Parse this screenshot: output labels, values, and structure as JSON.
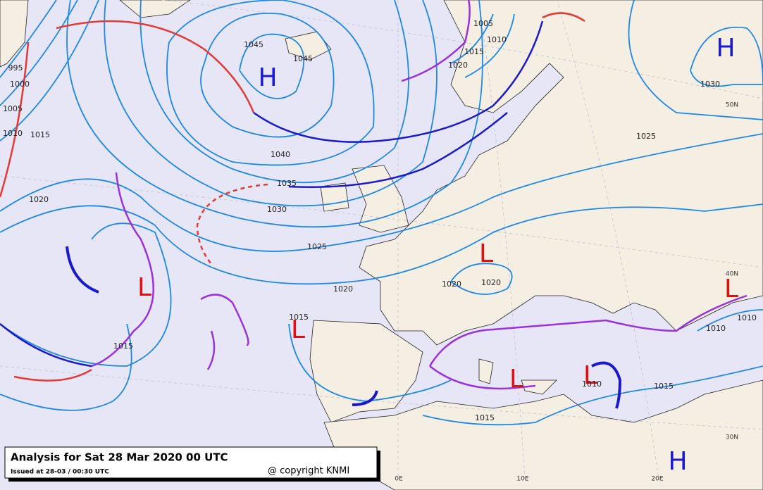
{
  "pressure_centers": [
    {
      "label": "H"
    },
    {
      "label": "H"
    },
    {
      "label": "H"
    },
    {
      "label": "L"
    },
    {
      "label": "L"
    },
    {
      "label": "L"
    },
    {
      "label": "L"
    },
    {
      "label": "L"
    },
    {
      "label": "L"
    }
  ],
  "isobar_labels": [
    "1045",
    "1045",
    "1040",
    "1035",
    "1030",
    "1025",
    "1020",
    "1020",
    "1015",
    "1015",
    "1015",
    "1015",
    "1015",
    "1010",
    "1010",
    "1010",
    "1020",
    "1015",
    "1010",
    "1005",
    "1030",
    "1025",
    "1020",
    "1020",
    "995",
    "1000",
    "1005",
    "1010"
  ],
  "graticule_labels": [
    "50N",
    "40N",
    "30N",
    "0E",
    "10E",
    "20E"
  ],
  "legend": {
    "title": "Analysis for Sat 28 Mar 2020 00 UTC",
    "issued": "Issued at 28-03 / 00:30 UTC",
    "copyright": "@ copyright KNMI"
  }
}
